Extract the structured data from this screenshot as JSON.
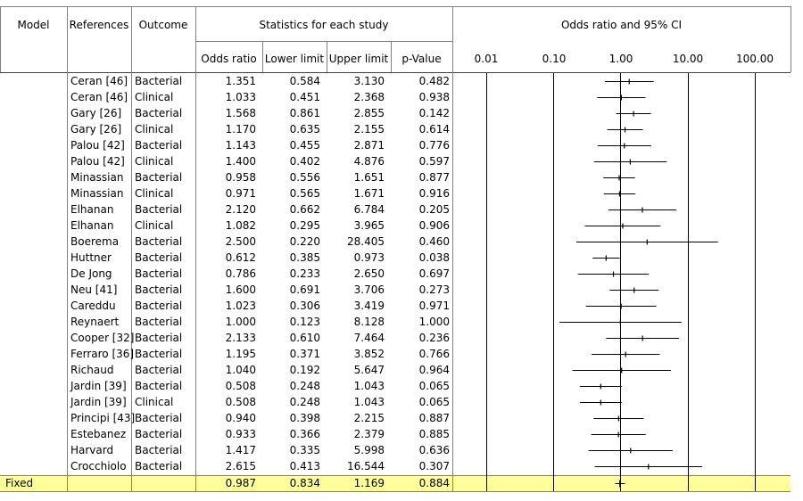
{
  "headers": {
    "model": "Model",
    "references": "References",
    "outcome": "Outcome",
    "stats_group": "Statistics for each study",
    "odds_ratio": "Odds ratio",
    "lower_limit": "Lower limit",
    "upper_limit": "Upper limit",
    "p_value": "p-Value",
    "forest_group": "Odds ratio and 95% CI",
    "axis_ticks": [
      "0.01",
      "0.10",
      "1.00",
      "10.00",
      "100.00"
    ]
  },
  "studies": [
    {
      "ref": "Ceran [46]",
      "outcome": "Bacterial",
      "or": "1.351",
      "lower": "0.584",
      "upper": "3.130",
      "p": "0.482"
    },
    {
      "ref": "Ceran [46]",
      "outcome": "Clinical",
      "or": "1.033",
      "lower": "0.451",
      "upper": "2.368",
      "p": "0.938"
    },
    {
      "ref": "Gary [26]",
      "outcome": "Bacterial",
      "or": "1.568",
      "lower": "0.861",
      "upper": "2.855",
      "p": "0.142"
    },
    {
      "ref": "Gary [26]",
      "outcome": "Clinical",
      "or": "1.170",
      "lower": "0.635",
      "upper": "2.155",
      "p": "0.614"
    },
    {
      "ref": "Palou [42]",
      "outcome": "Bacterial",
      "or": "1.143",
      "lower": "0.455",
      "upper": "2.871",
      "p": "0.776"
    },
    {
      "ref": "Palou [42]",
      "outcome": "Clinical",
      "or": "1.400",
      "lower": "0.402",
      "upper": "4.876",
      "p": "0.597"
    },
    {
      "ref": "Minassian",
      "outcome": "Bacterial",
      "or": "0.958",
      "lower": "0.556",
      "upper": "1.651",
      "p": "0.877"
    },
    {
      "ref": "Minassian",
      "outcome": "Clinical",
      "or": "0.971",
      "lower": "0.565",
      "upper": "1.671",
      "p": "0.916"
    },
    {
      "ref": "Elhanan",
      "outcome": "Bacterial",
      "or": "2.120",
      "lower": "0.662",
      "upper": "6.784",
      "p": "0.205"
    },
    {
      "ref": "Elhanan",
      "outcome": "Clinical",
      "or": "1.082",
      "lower": "0.295",
      "upper": "3.965",
      "p": "0.906"
    },
    {
      "ref": "Boerema",
      "outcome": "Bacterial",
      "or": "2.500",
      "lower": "0.220",
      "upper": "28.405",
      "p": "0.460"
    },
    {
      "ref": "Huttner",
      "outcome": "Bacterial",
      "or": "0.612",
      "lower": "0.385",
      "upper": "0.973",
      "p": "0.038"
    },
    {
      "ref": "De Jong",
      "outcome": "Bacterial",
      "or": "0.786",
      "lower": "0.233",
      "upper": "2.650",
      "p": "0.697"
    },
    {
      "ref": "Neu  [41]",
      "outcome": "Bacterial",
      "or": "1.600",
      "lower": "0.691",
      "upper": "3.706",
      "p": "0.273"
    },
    {
      "ref": "Careddu",
      "outcome": "Bacterial",
      "or": "1.023",
      "lower": "0.306",
      "upper": "3.419",
      "p": "0.971"
    },
    {
      "ref": "Reynaert",
      "outcome": "Bacterial",
      "or": "1.000",
      "lower": "0.123",
      "upper": "8.128",
      "p": "1.000"
    },
    {
      "ref": "Cooper [32]",
      "outcome": "Bacterial",
      "or": "2.133",
      "lower": "0.610",
      "upper": "7.464",
      "p": "0.236"
    },
    {
      "ref": "Ferraro [36]",
      "outcome": "Bacterial",
      "or": "1.195",
      "lower": "0.371",
      "upper": "3.852",
      "p": "0.766"
    },
    {
      "ref": "Richaud",
      "outcome": "Bacterial",
      "or": "1.040",
      "lower": "0.192",
      "upper": "5.647",
      "p": "0.964"
    },
    {
      "ref": "Jardin [39]",
      "outcome": "Bacterial",
      "or": "0.508",
      "lower": "0.248",
      "upper": "1.043",
      "p": "0.065"
    },
    {
      "ref": "Jardin [39]",
      "outcome": "Clinical",
      "or": "0.508",
      "lower": "0.248",
      "upper": "1.043",
      "p": "0.065"
    },
    {
      "ref": "Principi [43]",
      "outcome": "Bacterial",
      "or": "0.940",
      "lower": "0.398",
      "upper": "2.215",
      "p": "0.887"
    },
    {
      "ref": "Estebanez",
      "outcome": "Bacterial",
      "or": "0.933",
      "lower": "0.366",
      "upper": "2.379",
      "p": "0.885"
    },
    {
      "ref": "Harvard",
      "outcome": "Bacterial",
      "or": "1.417",
      "lower": "0.335",
      "upper": "5.998",
      "p": "0.636"
    },
    {
      "ref": "Crocchiolo",
      "outcome": "Bacterial",
      "or": "2.615",
      "lower": "0.413",
      "upper": "16.544",
      "p": "0.307"
    }
  ],
  "summary": {
    "model": "Fixed",
    "or": "0.987",
    "lower": "0.834",
    "upper": "1.169",
    "p": "0.884"
  },
  "colors": {
    "summary_band": "#ffff99",
    "grid_line": "#808080",
    "header_bg": "#ffffff"
  },
  "chart_data": {
    "type": "forest",
    "title": "Odds ratio and 95% CI",
    "xscale": "log",
    "xlim": [
      0.01,
      100
    ],
    "reference_line": 1,
    "series": [
      {
        "categories": [
          "Ceran [46] Bacterial",
          "Ceran [46] Clinical",
          "Gary [26] Bacterial",
          "Gary [26] Clinical",
          "Palou [42] Bacterial",
          "Palou [42] Clinical",
          "Minassian Bacterial",
          "Minassian Clinical",
          "Elhanan Bacterial",
          "Elhanan Clinical",
          "Boerema Bacterial",
          "Huttner Bacterial",
          "De Jong Bacterial",
          "Neu  [41] Bacterial",
          "Careddu Bacterial",
          "Reynaert Bacterial",
          "Cooper [32] Bacterial",
          "Ferraro [36] Bacterial",
          "Richaud Bacterial",
          "Jardin [39] Bacterial",
          "Jardin [39] Clinical",
          "Principi [43] Bacterial",
          "Estebanez Bacterial",
          "Harvard Bacterial",
          "Crocchiolo Bacterial"
        ],
        "point": [
          1.351,
          1.033,
          1.568,
          1.17,
          1.143,
          1.4,
          0.958,
          0.971,
          2.12,
          1.082,
          2.5,
          0.612,
          0.786,
          1.6,
          1.023,
          1.0,
          2.133,
          1.195,
          1.04,
          0.508,
          0.508,
          0.94,
          0.933,
          1.417,
          2.615
        ],
        "lower": [
          0.584,
          0.451,
          0.861,
          0.635,
          0.455,
          0.402,
          0.556,
          0.565,
          0.662,
          0.295,
          0.22,
          0.385,
          0.233,
          0.691,
          0.306,
          0.123,
          0.61,
          0.371,
          0.192,
          0.248,
          0.248,
          0.398,
          0.366,
          0.335,
          0.413
        ],
        "upper": [
          3.13,
          2.368,
          2.855,
          2.155,
          2.871,
          4.876,
          1.651,
          1.671,
          6.784,
          3.965,
          28.405,
          0.973,
          2.65,
          3.706,
          3.419,
          8.128,
          7.464,
          3.852,
          5.647,
          1.043,
          1.043,
          2.215,
          2.379,
          5.998,
          16.544
        ]
      }
    ],
    "summary": {
      "label": "Fixed",
      "point": 0.987,
      "lower": 0.834,
      "upper": 1.169
    }
  }
}
